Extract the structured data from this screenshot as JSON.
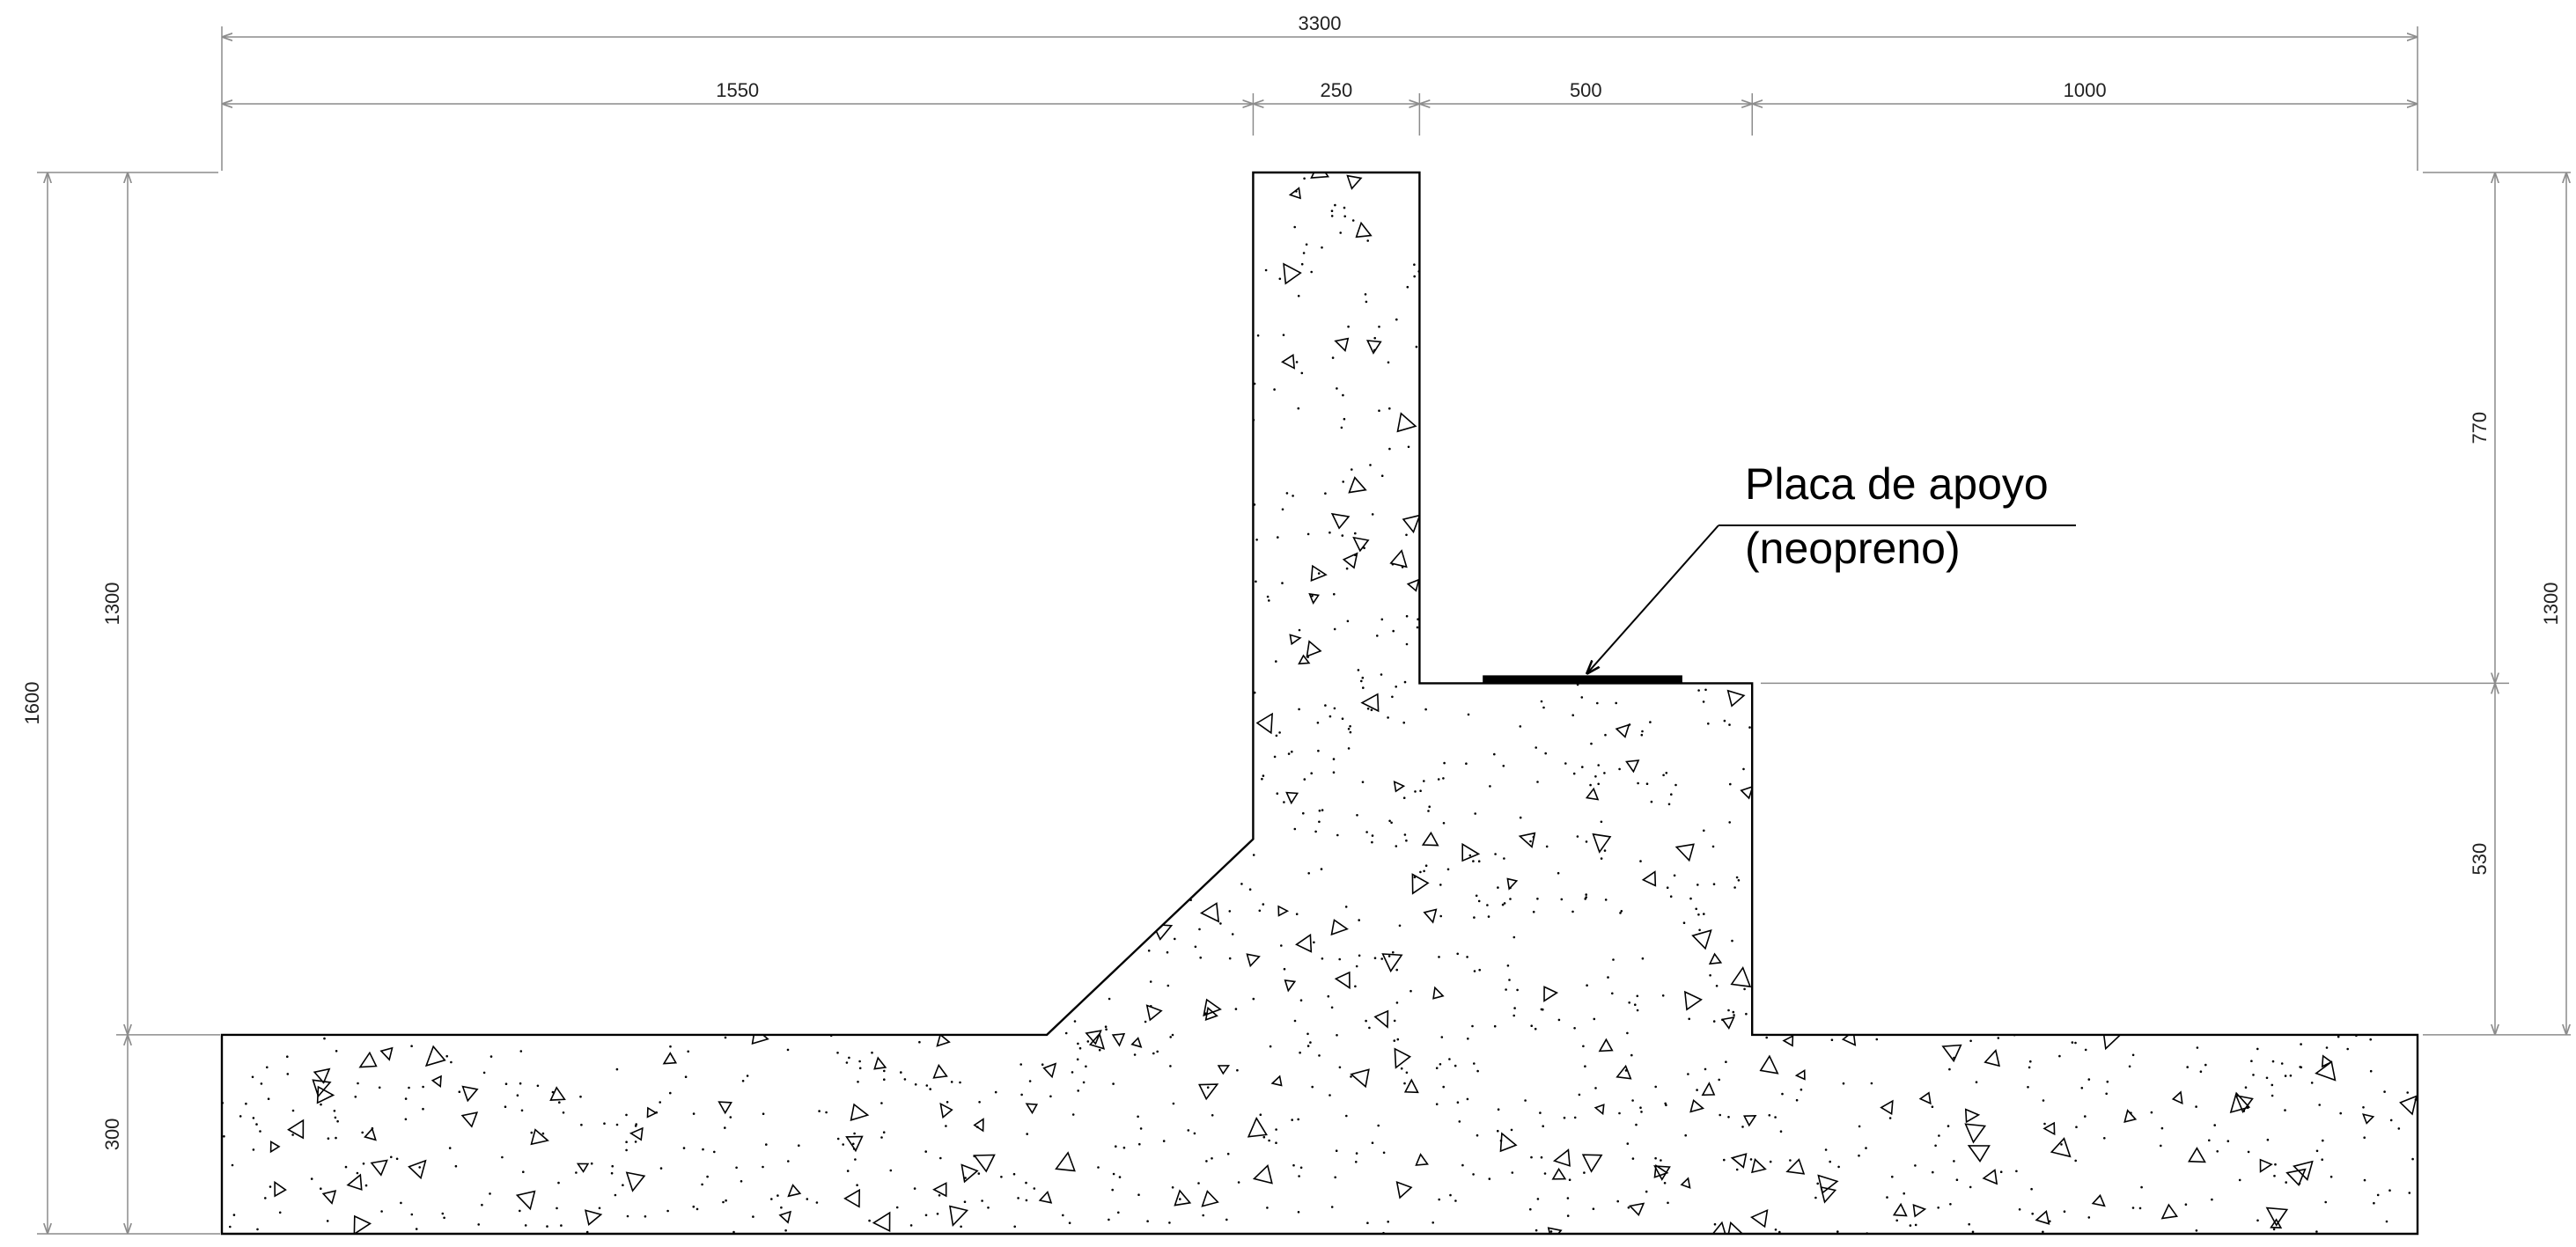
{
  "drawing": {
    "units": "mm",
    "colors": {
      "outline": "#000000",
      "dimension": "#8c8c8c",
      "text": "#222222",
      "background": "#ffffff"
    },
    "section": {
      "total_width": 3300,
      "heel_width": 1550,
      "wall_width": 250,
      "seat_width": 500,
      "toe_width": 1000,
      "total_height": 1600,
      "upper_height": 1300,
      "footing_height": 300,
      "wall_above_seat": 770,
      "seat_to_footing": 530
    },
    "dimensions": {
      "top_total": "3300",
      "top_heel": "1550",
      "top_wall": "250",
      "top_seat": "500",
      "top_toe": "1000",
      "left_total": "1600",
      "left_upper": "1300",
      "left_footing": "300",
      "right_upper_part": "770",
      "right_lower_part": "530",
      "right_total": "1300"
    },
    "label": {
      "line1": "Placa de apoyo",
      "line2": "(neopreno)"
    },
    "hatch": {
      "pattern": "concrete",
      "triangles_count": 180,
      "dots_count": 900
    }
  }
}
